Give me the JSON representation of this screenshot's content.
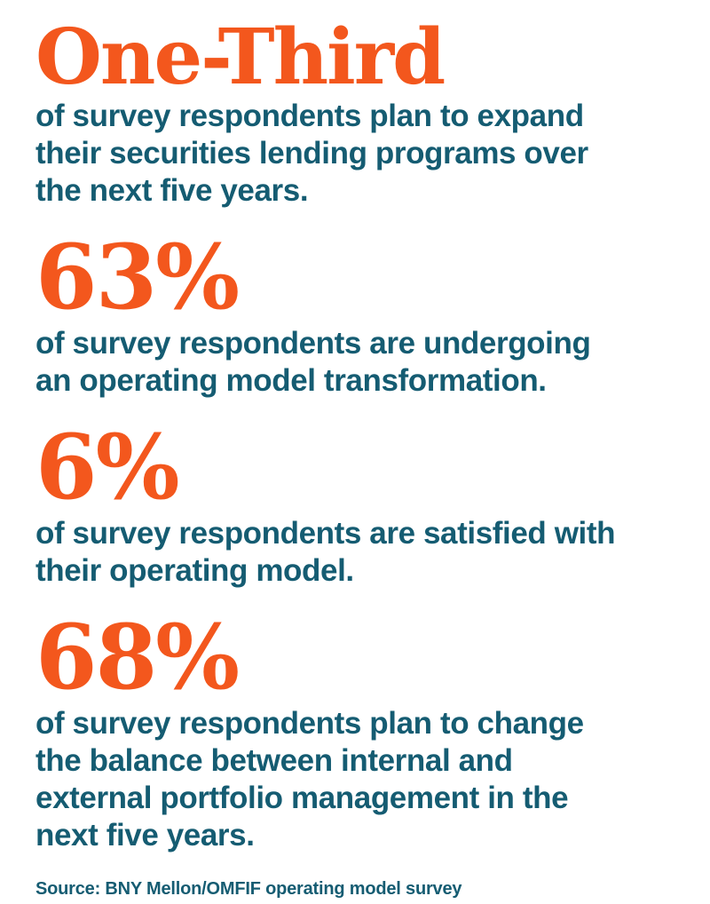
{
  "colors": {
    "accent": "#F3571D",
    "text": "#155C72",
    "background": "#FFFFFF"
  },
  "sections": [
    {
      "value": "One-Third",
      "lines": [
        "of survey respondents plan to expand",
        "their securities lending programs over",
        "the next five years."
      ]
    },
    {
      "value": "63%",
      "lines": [
        "of survey respondents are undergoing",
        "an operating model transformation."
      ]
    },
    {
      "value": "6%",
      "lines": [
        "of survey respondents are satisfied with",
        "their operating model."
      ]
    },
    {
      "value": "68%",
      "lines": [
        "of survey respondents plan to change",
        "the balance between internal and",
        "external portfolio management in the",
        "next five years."
      ]
    }
  ],
  "source": {
    "text": "Source: BNY Mellon/OMFIF operating model survey"
  }
}
